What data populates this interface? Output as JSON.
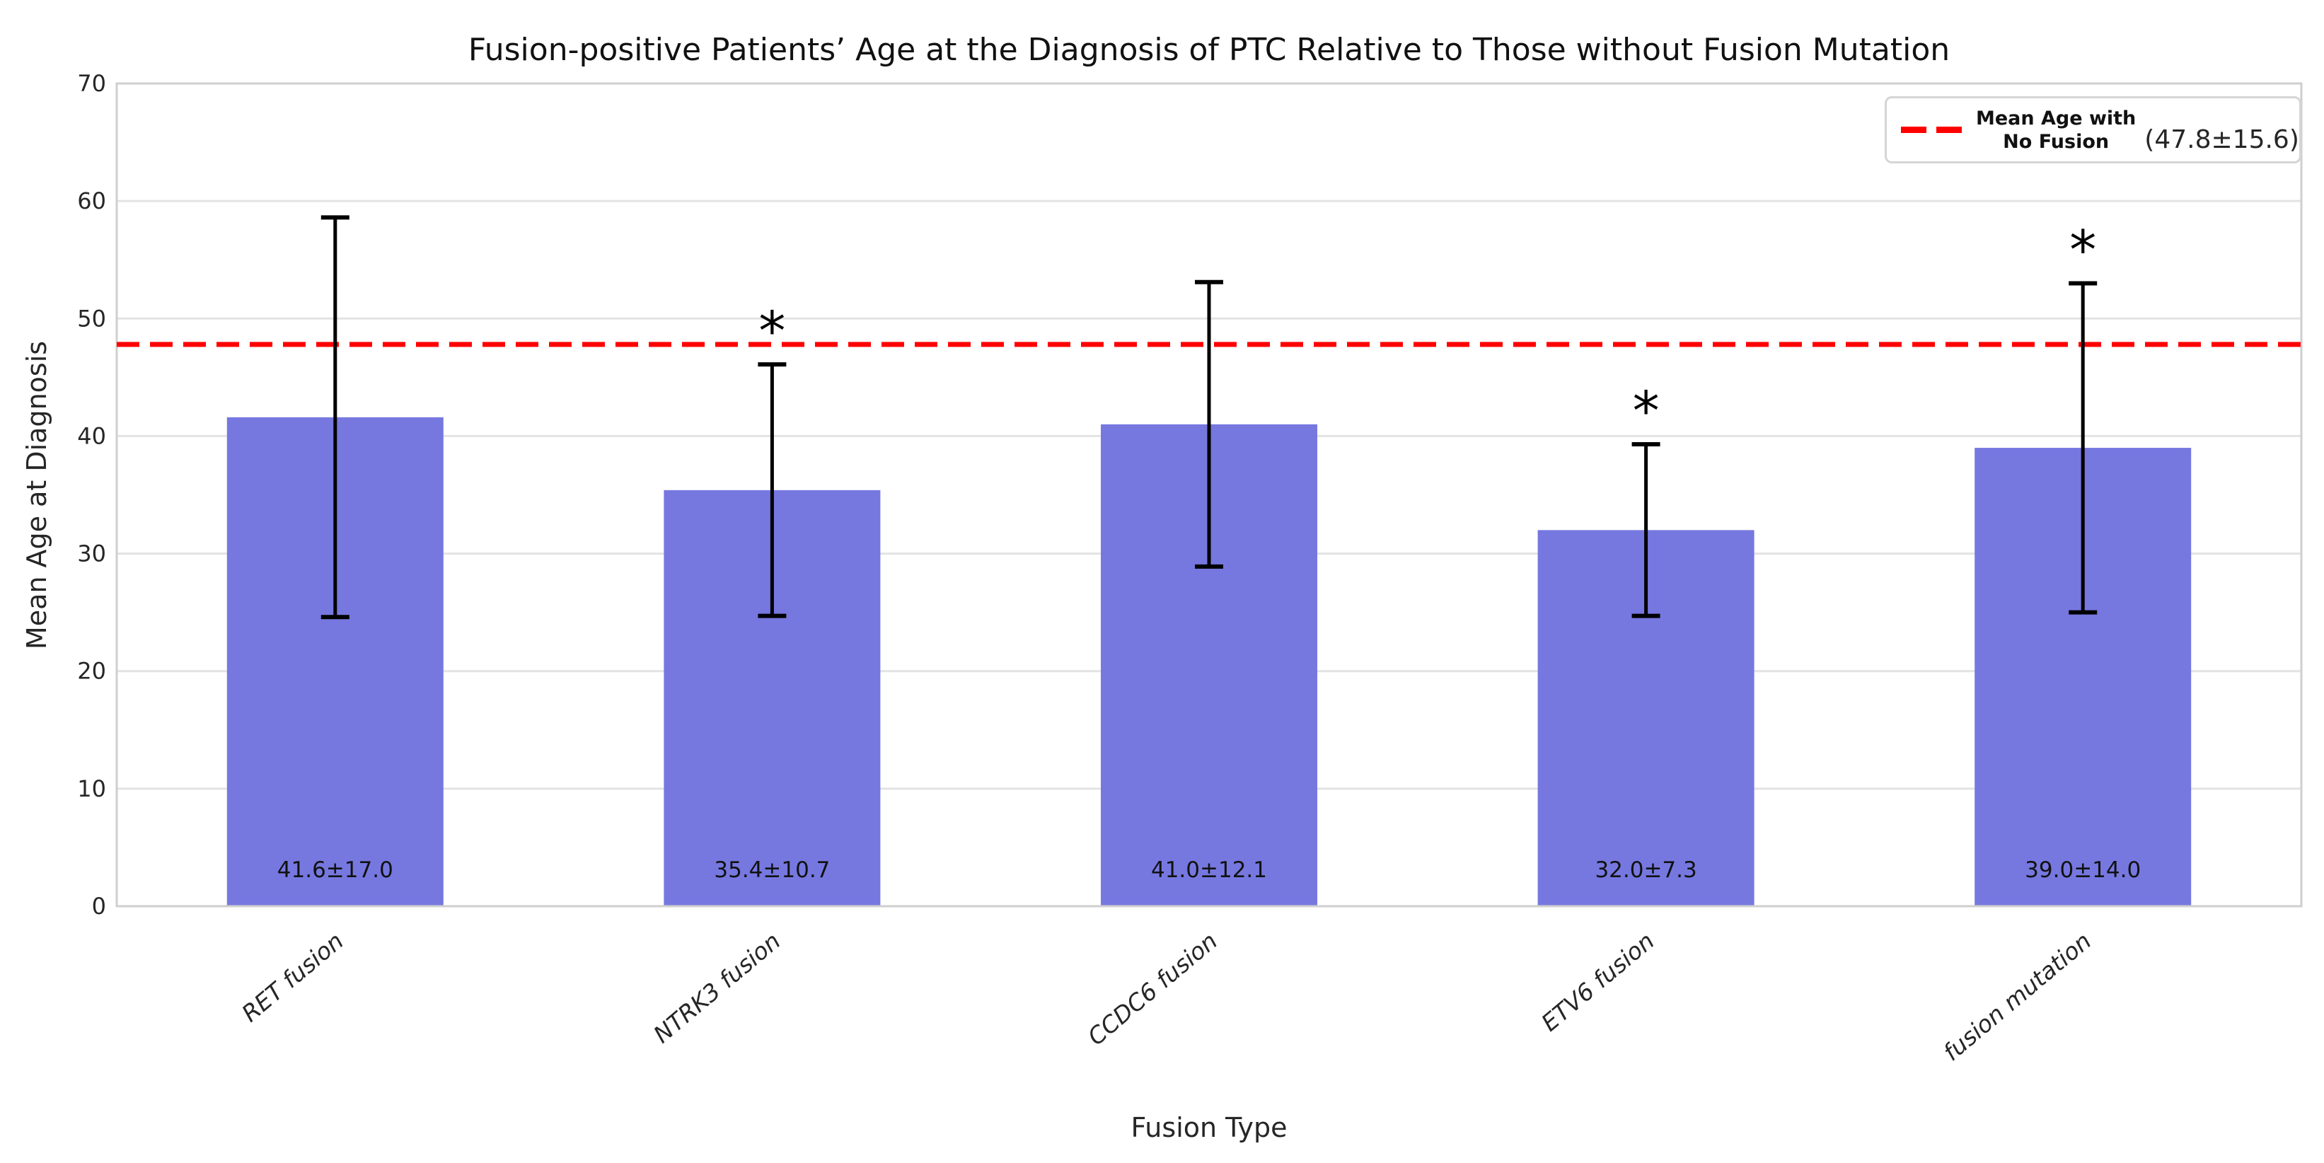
{
  "chart_data": {
    "type": "bar",
    "title": "Fusion-positive Patients’ Age at the Diagnosis of PTC Relative to Those without Fusion Mutation",
    "xlabel": "Fusion Type",
    "ylabel": "Mean Age at Diagnosis",
    "ylim": [
      0,
      70
    ],
    "yticks": [
      0,
      10,
      20,
      30,
      40,
      50,
      60,
      70
    ],
    "grid": "horizontal",
    "legend_position": "upper right",
    "categories": [
      "RET fusion",
      "NTRK3 fusion",
      "CCDC6 fusion",
      "ETV6 fusion",
      "fusion mutation"
    ],
    "series": [
      {
        "name": "Mean Age at Diagnosis",
        "values": [
          41.6,
          35.4,
          41.0,
          32.0,
          39.0
        ],
        "errors": [
          17.0,
          10.7,
          12.1,
          7.3,
          14.0
        ]
      }
    ],
    "bar_labels": [
      "41.6±17.0",
      "35.4±10.7",
      "41.0±12.1",
      "32.0±7.3",
      "39.0±14.0"
    ],
    "significance_markers": [
      "",
      "*",
      "",
      "*",
      "*"
    ],
    "reference_line": {
      "value": 47.8,
      "style": "dashed",
      "color": "#ff0000",
      "label_lines": [
        "Mean Age with",
        "No Fusion"
      ],
      "annotation": "(47.8±15.6)"
    },
    "colors": {
      "bar": "#7678e0",
      "error_bar": "#000000",
      "grid": "#e3e3e3",
      "spine": "#cfcfcf",
      "tick_text": "#262626",
      "text": "#111111"
    }
  }
}
